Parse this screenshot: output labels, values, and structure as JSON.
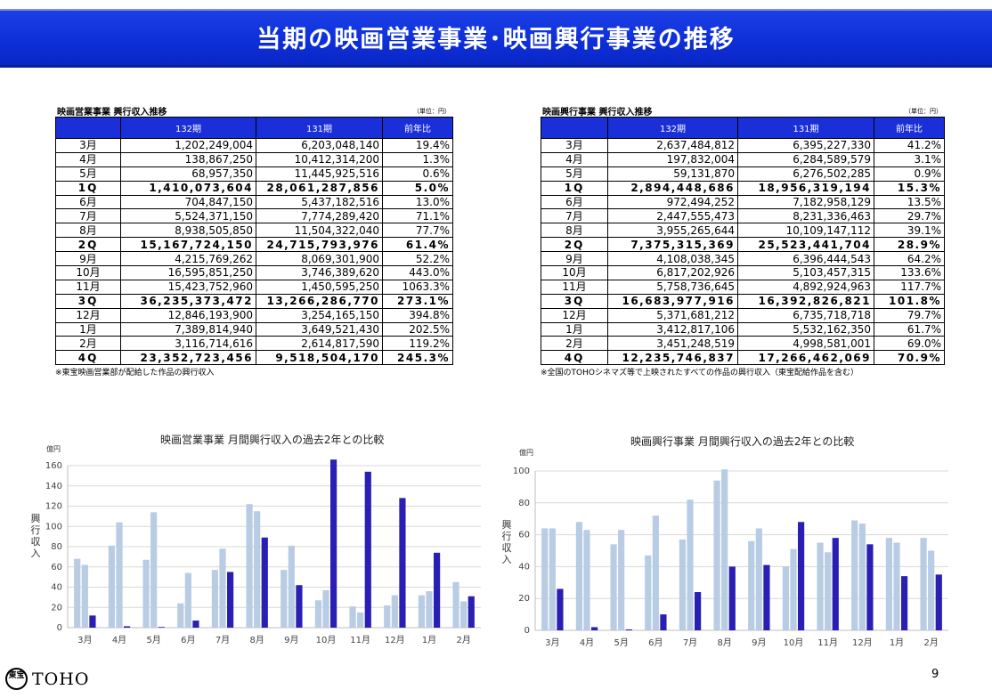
{
  "title": "当期の映画営業事業･映画興行事業の推移",
  "tables": [
    {
      "title": "映画営業事業 興行収入推移",
      "unit": "（単位：円）",
      "headers": [
        "",
        "132期",
        "131期",
        "前年比"
      ],
      "rows": [
        [
          "3月",
          "1,202,249,004",
          "6,203,048,140",
          "19.4%"
        ],
        [
          "4月",
          "138,867,250",
          "10,412,314,200",
          "1.3%"
        ],
        [
          "5月",
          "68,957,350",
          "11,445,925,516",
          "0.6%"
        ],
        [
          "1Q",
          "1,410,073,604",
          "28,061,287,856",
          "5.0%"
        ],
        [
          "6月",
          "704,847,150",
          "5,437,182,516",
          "13.0%"
        ],
        [
          "7月",
          "5,524,371,150",
          "7,774,289,420",
          "71.1%"
        ],
        [
          "8月",
          "8,938,505,850",
          "11,504,322,040",
          "77.7%"
        ],
        [
          "2Q",
          "15,167,724,150",
          "24,715,793,976",
          "61.4%"
        ],
        [
          "9月",
          "4,215,769,262",
          "8,069,301,900",
          "52.2%"
        ],
        [
          "10月",
          "16,595,851,250",
          "3,746,389,620",
          "443.0%"
        ],
        [
          "11月",
          "15,423,752,960",
          "1,450,595,250",
          "1063.3%"
        ],
        [
          "3Q",
          "36,235,373,472",
          "13,266,286,770",
          "273.1%"
        ],
        [
          "12月",
          "12,846,193,900",
          "3,254,165,150",
          "394.8%"
        ],
        [
          "1月",
          "7,389,814,940",
          "3,649,521,430",
          "202.5%"
        ],
        [
          "2月",
          "3,116,714,616",
          "2,614,817,590",
          "119.2%"
        ],
        [
          "4Q",
          "23,352,723,456",
          "9,518,504,170",
          "245.3%"
        ]
      ],
      "note": "※東宝映画営業部が配給した作品の興行収入"
    },
    {
      "title": "映画興行事業 興行収入推移",
      "unit": "（単位：円）",
      "headers": [
        "",
        "132期",
        "131期",
        "前年比"
      ],
      "rows": [
        [
          "3月",
          "2,637,484,812",
          "6,395,227,330",
          "41.2%"
        ],
        [
          "4月",
          "197,832,004",
          "6,284,589,579",
          "3.1%"
        ],
        [
          "5月",
          "59,131,870",
          "6,276,502,285",
          "0.9%"
        ],
        [
          "1Q",
          "2,894,448,686",
          "18,956,319,194",
          "15.3%"
        ],
        [
          "6月",
          "972,494,252",
          "7,182,958,129",
          "13.5%"
        ],
        [
          "7月",
          "2,447,555,473",
          "8,231,336,463",
          "29.7%"
        ],
        [
          "8月",
          "3,955,265,644",
          "10,109,147,112",
          "39.1%"
        ],
        [
          "2Q",
          "7,375,315,369",
          "25,523,441,704",
          "28.9%"
        ],
        [
          "9月",
          "4,108,038,345",
          "6,396,444,543",
          "64.2%"
        ],
        [
          "10月",
          "6,817,202,926",
          "5,103,457,315",
          "133.6%"
        ],
        [
          "11月",
          "5,758,736,645",
          "4,892,924,963",
          "117.7%"
        ],
        [
          "3Q",
          "16,683,977,916",
          "16,392,826,821",
          "101.8%"
        ],
        [
          "12月",
          "5,371,681,212",
          "6,735,718,718",
          "79.7%"
        ],
        [
          "1月",
          "3,412,817,106",
          "5,532,162,350",
          "61.7%"
        ],
        [
          "2月",
          "3,451,248,519",
          "4,998,581,001",
          "69.0%"
        ],
        [
          "4Q",
          "12,235,746,837",
          "17,266,462,069",
          "70.9%"
        ]
      ],
      "note": "※全国のTOHOシネマズ等で上映されたすべての作品の興行収入（東宝配給作品を含む）"
    }
  ],
  "chart_data": [
    {
      "type": "bar",
      "title": "映画営業事業 月間興行収入の過去2年との比較",
      "unit": "億円",
      "ylabel": "興行収入",
      "categories": [
        "3月",
        "4月",
        "5月",
        "6月",
        "7月",
        "8月",
        "9月",
        "10月",
        "11月",
        "12月",
        "1月",
        "2月"
      ],
      "ylim": [
        0,
        160
      ],
      "yticks": [
        0,
        20,
        40,
        60,
        80,
        100,
        120,
        140,
        160
      ],
      "series": [
        {
          "values": [
            68,
            81,
            67,
            24,
            57,
            122,
            57,
            27,
            21,
            22,
            32,
            45
          ],
          "color": "#b8cce4"
        },
        {
          "values": [
            62,
            104,
            114,
            54,
            78,
            115,
            81,
            37,
            15,
            32,
            36,
            26
          ],
          "color": "#b8cce4"
        },
        {
          "values": [
            12,
            1.4,
            0.7,
            7,
            55,
            89,
            42,
            166,
            154,
            128,
            74,
            31
          ],
          "color": "#2a1fb3"
        }
      ],
      "grid": true
    },
    {
      "type": "bar",
      "title": "映画興行事業 月間興行収入の過去2年との比較",
      "unit": "億円",
      "ylabel": "興行収入",
      "categories": [
        "3月",
        "4月",
        "5月",
        "6月",
        "7月",
        "8月",
        "9月",
        "10月",
        "11月",
        "12月",
        "1月",
        "2月"
      ],
      "ylim": [
        0,
        100
      ],
      "yticks": [
        0,
        20,
        40,
        60,
        80,
        100
      ],
      "series": [
        {
          "values": [
            64,
            68,
            54,
            47,
            57,
            94,
            56,
            40,
            55,
            69,
            58,
            58
          ],
          "color": "#b8cce4"
        },
        {
          "values": [
            64,
            63,
            63,
            72,
            82,
            101,
            64,
            51,
            49,
            67,
            55,
            50
          ],
          "color": "#b8cce4"
        },
        {
          "values": [
            26,
            2,
            0.6,
            10,
            24,
            40,
            41,
            68,
            58,
            54,
            34,
            35
          ],
          "color": "#2a1fb3"
        }
      ],
      "grid": true
    }
  ],
  "footer": {
    "logo_seal": "東宝",
    "logo_text": "TOHO",
    "page_number": "9"
  }
}
